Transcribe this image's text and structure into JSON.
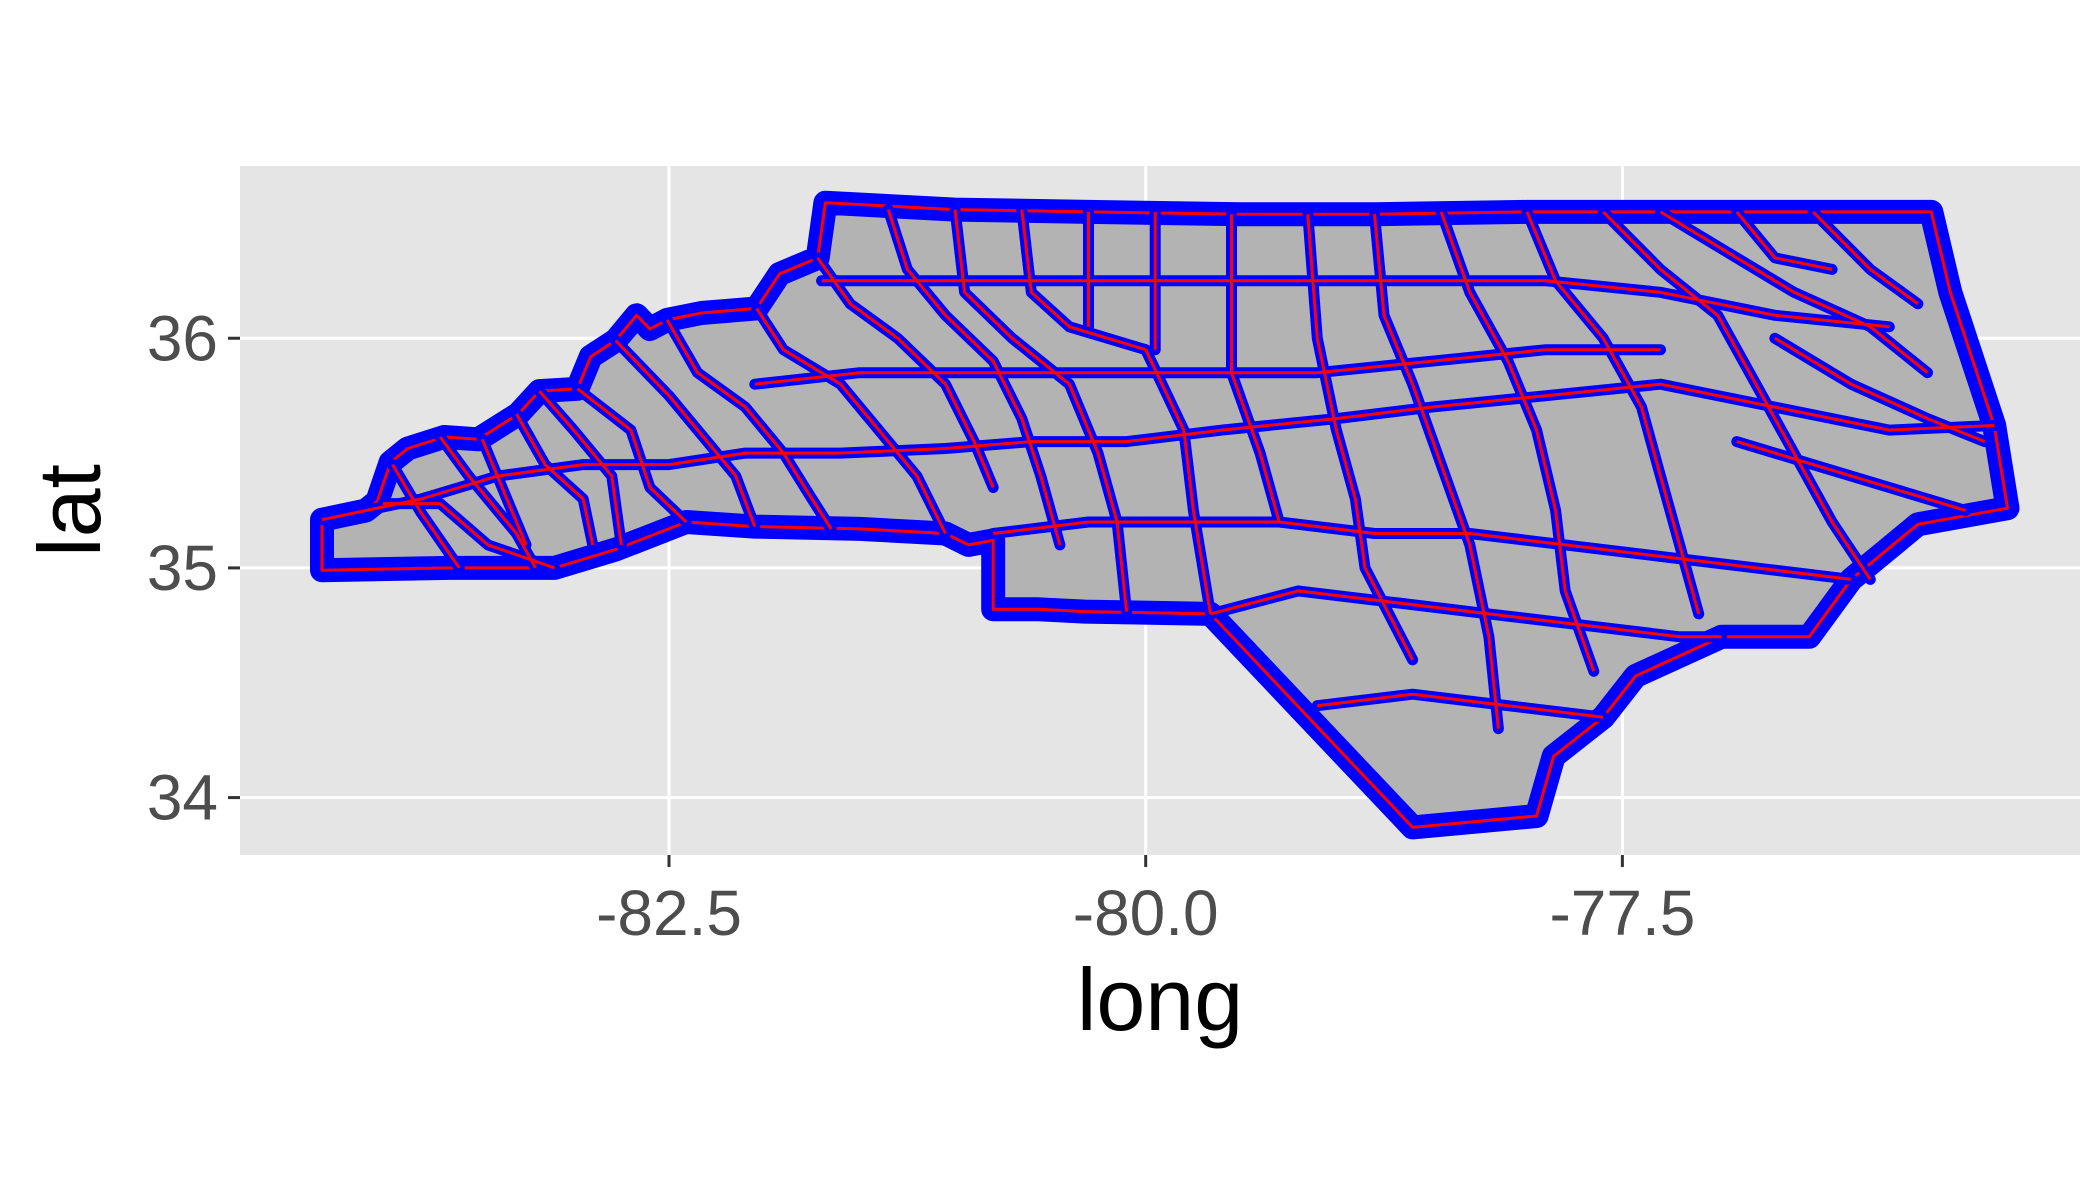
{
  "chart_data": {
    "type": "map",
    "xlabel": "long",
    "ylabel": "lat",
    "xlim": [
      -84.75,
      -75.1
    ],
    "ylim": [
      33.75,
      36.75
    ],
    "x_ticks": [
      -82.5,
      -80.0,
      -77.5
    ],
    "x_tick_labels": [
      "-82.5",
      "-80.0",
      "-77.5"
    ],
    "y_ticks": [
      34,
      35,
      36
    ],
    "y_tick_labels": [
      "34",
      "35",
      "36"
    ],
    "grid": true,
    "legend": "none",
    "panel_background": "#e5e5e5",
    "gridline_color": "#ffffff",
    "region_fill": "#b3b3b3",
    "outer_outline_color": "#0000ff",
    "inner_outline_color": "#ff0000",
    "outline": [
      [
        -84.32,
        34.99
      ],
      [
        -84.32,
        35.21
      ],
      [
        -84.09,
        35.25
      ],
      [
        -84.03,
        35.29
      ],
      [
        -83.96,
        35.46
      ],
      [
        -83.87,
        35.52
      ],
      [
        -83.68,
        35.57
      ],
      [
        -83.5,
        35.56
      ],
      [
        -83.29,
        35.67
      ],
      [
        -83.18,
        35.77
      ],
      [
        -82.98,
        35.78
      ],
      [
        -82.91,
        35.92
      ],
      [
        -82.78,
        35.99
      ],
      [
        -82.67,
        36.1
      ],
      [
        -82.6,
        36.04
      ],
      [
        -82.51,
        36.08
      ],
      [
        -82.33,
        36.11
      ],
      [
        -82.04,
        36.13
      ],
      [
        -81.92,
        36.28
      ],
      [
        -81.72,
        36.35
      ],
      [
        -81.68,
        36.59
      ],
      [
        -81.0,
        36.56
      ],
      [
        -80.3,
        36.55
      ],
      [
        -79.5,
        36.54
      ],
      [
        -78.8,
        36.54
      ],
      [
        -78.0,
        36.55
      ],
      [
        -77.3,
        36.55
      ],
      [
        -76.5,
        36.55
      ],
      [
        -75.88,
        36.55
      ],
      [
        -75.78,
        36.2
      ],
      [
        -75.55,
        35.62
      ],
      [
        -75.48,
        35.26
      ],
      [
        -75.95,
        35.19
      ],
      [
        -76.3,
        34.95
      ],
      [
        -76.52,
        34.7
      ],
      [
        -76.98,
        34.7
      ],
      [
        -77.43,
        34.53
      ],
      [
        -77.6,
        34.35
      ],
      [
        -77.86,
        34.18
      ],
      [
        -77.95,
        33.92
      ],
      [
        -78.6,
        33.87
      ],
      [
        -79.66,
        34.8
      ],
      [
        -80.32,
        34.81
      ],
      [
        -80.56,
        34.82
      ],
      [
        -80.8,
        34.82
      ],
      [
        -80.8,
        35.12
      ],
      [
        -80.93,
        35.1
      ],
      [
        -81.05,
        35.15
      ],
      [
        -81.5,
        35.17
      ],
      [
        -82.05,
        35.18
      ],
      [
        -82.41,
        35.2
      ],
      [
        -82.78,
        35.08
      ],
      [
        -83.1,
        35.0
      ],
      [
        -83.65,
        35.0
      ],
      [
        -84.32,
        34.99
      ]
    ],
    "county_lines": [
      [
        [
          -84.0,
          35.28
        ],
        [
          -83.7,
          35.28
        ],
        [
          -83.45,
          35.1
        ],
        [
          -83.1,
          35.0
        ]
      ],
      [
        [
          -83.95,
          35.45
        ],
        [
          -83.8,
          35.24
        ],
        [
          -83.6,
          35.0
        ]
      ],
      [
        [
          -83.7,
          35.57
        ],
        [
          -83.55,
          35.4
        ],
        [
          -83.3,
          35.15
        ],
        [
          -83.2,
          35.0
        ]
      ],
      [
        [
          -83.48,
          35.56
        ],
        [
          -83.35,
          35.3
        ],
        [
          -83.25,
          35.1
        ]
      ],
      [
        [
          -83.3,
          35.67
        ],
        [
          -83.15,
          35.45
        ],
        [
          -82.95,
          35.3
        ],
        [
          -82.9,
          35.1
        ]
      ],
      [
        [
          -83.18,
          35.77
        ],
        [
          -83.0,
          35.6
        ],
        [
          -82.8,
          35.4
        ],
        [
          -82.75,
          35.1
        ]
      ],
      [
        [
          -82.98,
          35.78
        ],
        [
          -82.7,
          35.6
        ],
        [
          -82.6,
          35.35
        ],
        [
          -82.41,
          35.2
        ]
      ],
      [
        [
          -82.78,
          35.99
        ],
        [
          -82.5,
          35.75
        ],
        [
          -82.3,
          35.55
        ],
        [
          -82.15,
          35.4
        ],
        [
          -82.05,
          35.18
        ]
      ],
      [
        [
          -82.51,
          36.08
        ],
        [
          -82.35,
          35.85
        ],
        [
          -82.1,
          35.7
        ],
        [
          -81.9,
          35.5
        ],
        [
          -81.75,
          35.3
        ],
        [
          -81.65,
          35.17
        ]
      ],
      [
        [
          -82.04,
          36.13
        ],
        [
          -81.9,
          35.95
        ],
        [
          -81.6,
          35.8
        ],
        [
          -81.4,
          35.6
        ],
        [
          -81.2,
          35.4
        ],
        [
          -81.05,
          35.15
        ]
      ],
      [
        [
          -81.72,
          36.35
        ],
        [
          -81.55,
          36.15
        ],
        [
          -81.3,
          36.0
        ],
        [
          -81.05,
          35.8
        ],
        [
          -80.9,
          35.55
        ],
        [
          -80.8,
          35.35
        ]
      ],
      [
        [
          -81.35,
          36.56
        ],
        [
          -81.25,
          36.3
        ],
        [
          -81.05,
          36.1
        ],
        [
          -80.8,
          35.9
        ],
        [
          -80.65,
          35.65
        ],
        [
          -80.55,
          35.4
        ],
        [
          -80.45,
          35.1
        ]
      ],
      [
        [
          -81.0,
          36.56
        ],
        [
          -80.95,
          36.2
        ],
        [
          -80.7,
          36.0
        ],
        [
          -80.4,
          35.8
        ],
        [
          -80.25,
          35.5
        ],
        [
          -80.15,
          35.2
        ],
        [
          -80.1,
          34.81
        ]
      ],
      [
        [
          -80.65,
          36.56
        ],
        [
          -80.6,
          36.2
        ],
        [
          -80.4,
          36.05
        ],
        [
          -80.0,
          35.95
        ],
        [
          -79.8,
          35.6
        ],
        [
          -79.75,
          35.25
        ],
        [
          -79.66,
          34.8
        ]
      ],
      [
        [
          -80.3,
          36.55
        ],
        [
          -80.3,
          36.05
        ]
      ],
      [
        [
          -79.95,
          36.55
        ],
        [
          -79.95,
          35.95
        ]
      ],
      [
        [
          -79.55,
          36.54
        ],
        [
          -79.55,
          35.85
        ],
        [
          -79.4,
          35.5
        ],
        [
          -79.3,
          35.2
        ]
      ],
      [
        [
          -79.15,
          36.54
        ],
        [
          -79.1,
          36.0
        ],
        [
          -79.0,
          35.6
        ],
        [
          -78.9,
          35.3
        ],
        [
          -78.85,
          35.0
        ],
        [
          -78.6,
          34.6
        ]
      ],
      [
        [
          -78.8,
          36.54
        ],
        [
          -78.75,
          36.1
        ],
        [
          -78.6,
          35.8
        ],
        [
          -78.45,
          35.45
        ],
        [
          -78.3,
          35.1
        ],
        [
          -78.2,
          34.7
        ],
        [
          -78.15,
          34.3
        ]
      ],
      [
        [
          -78.45,
          36.55
        ],
        [
          -78.3,
          36.2
        ],
        [
          -78.1,
          35.9
        ],
        [
          -77.95,
          35.6
        ],
        [
          -77.85,
          35.25
        ],
        [
          -77.8,
          34.9
        ],
        [
          -77.65,
          34.55
        ]
      ],
      [
        [
          -78.0,
          36.55
        ],
        [
          -77.85,
          36.25
        ],
        [
          -77.6,
          36.0
        ],
        [
          -77.4,
          35.7
        ],
        [
          -77.3,
          35.4
        ],
        [
          -77.2,
          35.1
        ],
        [
          -77.1,
          34.8
        ]
      ],
      [
        [
          -77.6,
          36.55
        ],
        [
          -77.3,
          36.3
        ],
        [
          -77.0,
          36.1
        ],
        [
          -76.8,
          35.8
        ],
        [
          -76.6,
          35.5
        ],
        [
          -76.4,
          35.2
        ],
        [
          -76.2,
          34.95
        ]
      ],
      [
        [
          -77.3,
          36.55
        ],
        [
          -76.9,
          36.35
        ],
        [
          -76.6,
          36.2
        ],
        [
          -76.2,
          36.05
        ],
        [
          -75.9,
          35.85
        ]
      ],
      [
        [
          -76.9,
          36.55
        ],
        [
          -76.7,
          36.35
        ],
        [
          -76.4,
          36.3
        ]
      ],
      [
        [
          -76.5,
          36.55
        ],
        [
          -76.2,
          36.3
        ],
        [
          -75.95,
          36.15
        ]
      ],
      [
        [
          -84.32,
          35.21
        ],
        [
          -83.8,
          35.3
        ],
        [
          -83.4,
          35.4
        ],
        [
          -82.95,
          35.45
        ],
        [
          -82.5,
          35.45
        ],
        [
          -82.1,
          35.5
        ],
        [
          -81.6,
          35.5
        ],
        [
          -81.05,
          35.52
        ],
        [
          -80.6,
          35.55
        ],
        [
          -80.1,
          35.55
        ],
        [
          -79.6,
          35.6
        ],
        [
          -79.0,
          35.65
        ],
        [
          -78.5,
          35.7
        ],
        [
          -77.9,
          35.75
        ],
        [
          -77.3,
          35.8
        ],
        [
          -76.7,
          35.7
        ],
        [
          -76.1,
          35.6
        ],
        [
          -75.55,
          35.62
        ]
      ],
      [
        [
          -81.7,
          36.25
        ],
        [
          -81.2,
          36.25
        ],
        [
          -80.7,
          36.25
        ],
        [
          -80.2,
          36.25
        ],
        [
          -79.7,
          36.25
        ],
        [
          -79.1,
          36.25
        ],
        [
          -78.5,
          36.25
        ],
        [
          -77.9,
          36.25
        ],
        [
          -77.3,
          36.2
        ],
        [
          -76.7,
          36.1
        ],
        [
          -76.1,
          36.05
        ]
      ],
      [
        [
          -82.05,
          35.8
        ],
        [
          -81.5,
          35.85
        ],
        [
          -80.9,
          35.85
        ],
        [
          -80.3,
          35.85
        ],
        [
          -79.7,
          35.85
        ],
        [
          -79.1,
          35.85
        ],
        [
          -78.5,
          35.9
        ],
        [
          -77.9,
          35.95
        ],
        [
          -77.3,
          35.95
        ]
      ],
      [
        [
          -80.8,
          35.15
        ],
        [
          -80.3,
          35.2
        ],
        [
          -79.8,
          35.2
        ],
        [
          -79.3,
          35.2
        ],
        [
          -78.8,
          35.15
        ],
        [
          -78.3,
          35.15
        ],
        [
          -77.8,
          35.1
        ],
        [
          -77.3,
          35.05
        ],
        [
          -76.8,
          35.0
        ],
        [
          -76.3,
          34.95
        ]
      ],
      [
        [
          -79.66,
          34.8
        ],
        [
          -79.2,
          34.9
        ],
        [
          -78.7,
          34.85
        ],
        [
          -78.2,
          34.8
        ],
        [
          -77.7,
          34.75
        ],
        [
          -77.2,
          34.7
        ],
        [
          -76.98,
          34.7
        ]
      ],
      [
        [
          -79.1,
          34.4
        ],
        [
          -78.6,
          34.45
        ],
        [
          -78.1,
          34.4
        ],
        [
          -77.6,
          34.35
        ]
      ],
      [
        [
          -76.9,
          35.55
        ],
        [
          -76.5,
          35.45
        ],
        [
          -76.1,
          35.35
        ],
        [
          -75.7,
          35.25
        ]
      ],
      [
        [
          -76.7,
          36.0
        ],
        [
          -76.3,
          35.8
        ],
        [
          -75.9,
          35.65
        ],
        [
          -75.6,
          35.55
        ]
      ]
    ]
  }
}
